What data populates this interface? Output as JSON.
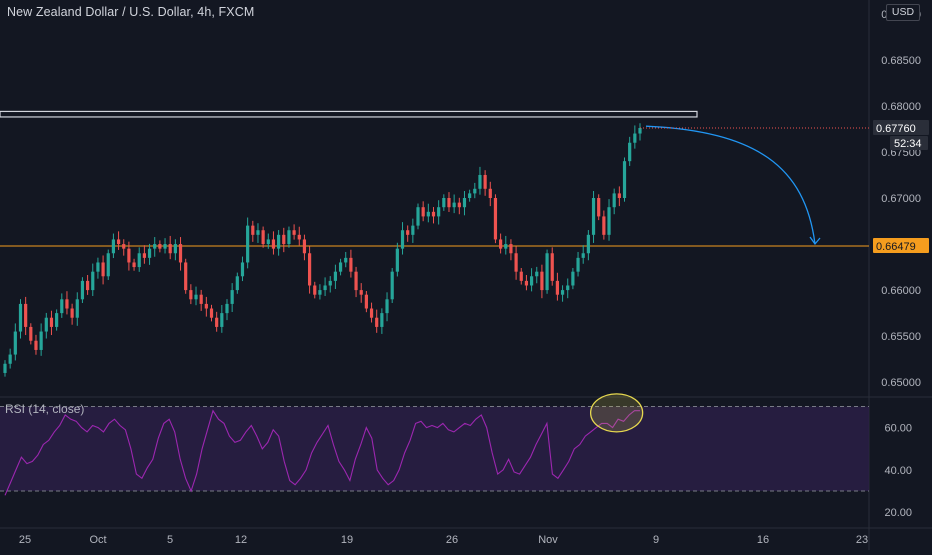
{
  "header": {
    "symbol_title": "New Zealand Dollar / U.S. Dollar, 4h, FXCM",
    "currency": "USD"
  },
  "colors": {
    "background": "#131722",
    "up": "#26a69a",
    "down": "#ef5350",
    "support_line": "#f59d1e",
    "rsi_line": "#9c27b0",
    "rsi_band": "#2a1f45",
    "arrow": "#2196f3",
    "highlight": "#e6d84f"
  },
  "chart_data": [
    {
      "type": "candlestick",
      "title": "New Zealand Dollar / U.S. Dollar, 4h, FXCM",
      "y_axis_ticks": [
        "0.69000",
        "0.68500",
        "0.68000",
        "0.67500",
        "0.67000",
        "0.66500",
        "0.66000",
        "0.65500",
        "0.65000"
      ],
      "ylim": [
        0.6485,
        0.6915
      ],
      "x_axis_ticks": [
        "25",
        "Oct",
        "5",
        "12",
        "19",
        "26",
        "Nov",
        "9",
        "16",
        "23"
      ],
      "last_price_label": "0.67760",
      "countdown_label": "52:34",
      "support_level": 0.66479,
      "support_label": "0.66479",
      "resistance_zone": [
        0.6788,
        0.6794
      ],
      "closes": [
        0.652,
        0.653,
        0.6555,
        0.6585,
        0.656,
        0.6545,
        0.6535,
        0.6555,
        0.657,
        0.656,
        0.6575,
        0.659,
        0.658,
        0.657,
        0.659,
        0.661,
        0.66,
        0.662,
        0.663,
        0.6615,
        0.664,
        0.6655,
        0.665,
        0.6645,
        0.663,
        0.6625,
        0.664,
        0.6635,
        0.6645,
        0.665,
        0.6645,
        0.665,
        0.664,
        0.665,
        0.663,
        0.66,
        0.659,
        0.6595,
        0.6585,
        0.658,
        0.657,
        0.656,
        0.6575,
        0.6585,
        0.66,
        0.6615,
        0.663,
        0.667,
        0.666,
        0.6665,
        0.665,
        0.6655,
        0.6645,
        0.666,
        0.665,
        0.6665,
        0.666,
        0.6655,
        0.664,
        0.6605,
        0.6595,
        0.66,
        0.6605,
        0.661,
        0.662,
        0.663,
        0.6635,
        0.662,
        0.66,
        0.6595,
        0.658,
        0.657,
        0.656,
        0.6575,
        0.659,
        0.662,
        0.6645,
        0.6665,
        0.666,
        0.667,
        0.669,
        0.668,
        0.6685,
        0.668,
        0.669,
        0.67,
        0.669,
        0.6695,
        0.669,
        0.67,
        0.6705,
        0.671,
        0.6725,
        0.671,
        0.67,
        0.6655,
        0.6645,
        0.665,
        0.664,
        0.662,
        0.661,
        0.6605,
        0.6615,
        0.662,
        0.66,
        0.664,
        0.661,
        0.6595,
        0.66,
        0.6605,
        0.662,
        0.6635,
        0.664,
        0.666,
        0.67,
        0.668,
        0.666,
        0.669,
        0.6705,
        0.67,
        0.674,
        0.676,
        0.677,
        0.6776
      ]
    },
    {
      "type": "line",
      "title": "RSI (14, close)",
      "y_axis_ticks": [
        "60.00",
        "40.00",
        "20.00"
      ],
      "ylim": [
        12.5,
        74.5
      ],
      "band": [
        30,
        70
      ],
      "series": [
        {
          "values": [
            28,
            34,
            40,
            46,
            43,
            44,
            47,
            52,
            54,
            58,
            61,
            66,
            64,
            63,
            60,
            58,
            61,
            60,
            58,
            62,
            64,
            61,
            59,
            50,
            38,
            36,
            41,
            45,
            55,
            62,
            64,
            58,
            45,
            36,
            30,
            38,
            50,
            59,
            68,
            64,
            62,
            56,
            53,
            54,
            58,
            61,
            56,
            50,
            53,
            59,
            56,
            44,
            35,
            33,
            36,
            40,
            48,
            53,
            57,
            61,
            52,
            44,
            40,
            35,
            45,
            52,
            60,
            55,
            40,
            36,
            33,
            35,
            40,
            48,
            54,
            62,
            63,
            60,
            61,
            60,
            62,
            59,
            58,
            60,
            62,
            61,
            64,
            66,
            60,
            48,
            38,
            40,
            45,
            39,
            38,
            42,
            46,
            52,
            57,
            62,
            38,
            36,
            40,
            44,
            50,
            52,
            56,
            58,
            60,
            62,
            62,
            60,
            64,
            63,
            66,
            68,
            68
          ]
        }
      ],
      "annotation": "overbought-circle"
    }
  ]
}
